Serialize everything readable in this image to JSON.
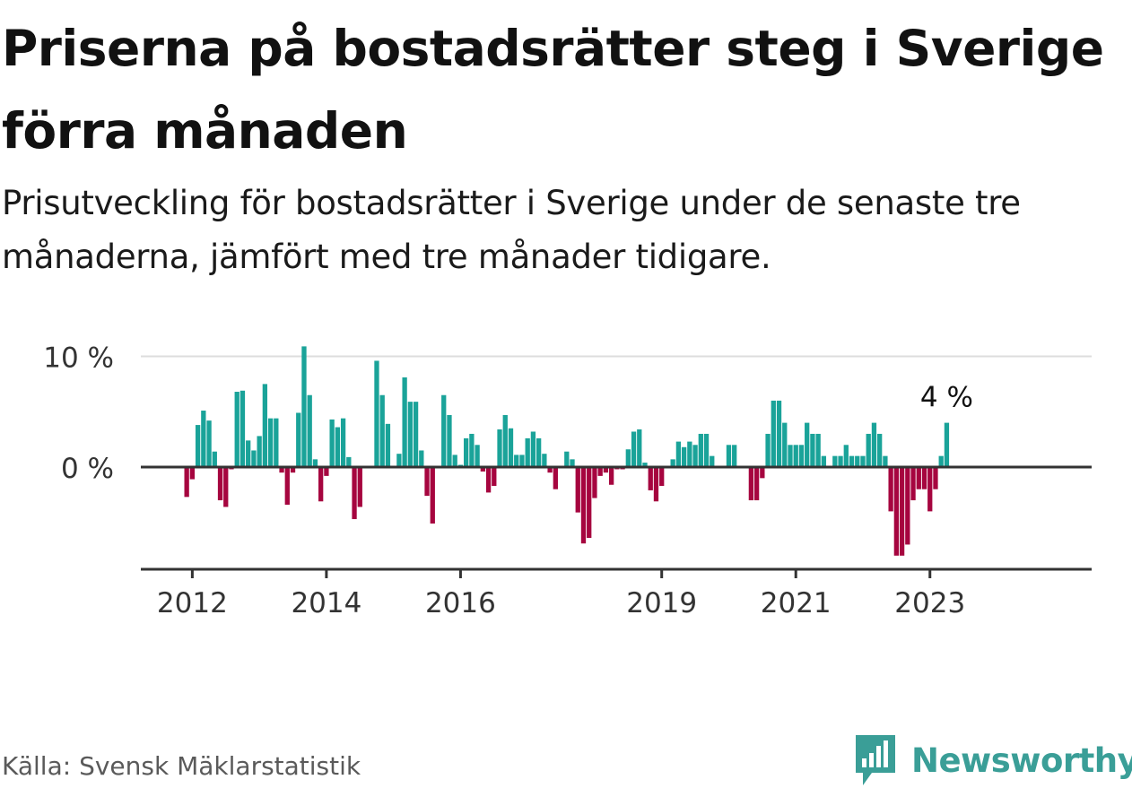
{
  "title": "Priserna på bostadsrätter steg i Sverige förra månaden",
  "subtitle": "Prisutveckling för bostadsrätter i Sverige under de senaste tre månaderna, jämfört med tre månader tidigare.",
  "source": "Källa: Svensk Mäklarstatistik",
  "brand": {
    "name": "Newsworthy",
    "icon": "bar-chart-logo-icon"
  },
  "colors": {
    "positive": "#1aa399",
    "negative": "#a6053f",
    "brand": "#3a9e97",
    "axis": "#333333",
    "grid": "#dddddd"
  },
  "chart_data": {
    "type": "bar",
    "ylabel": "",
    "xlabel": "",
    "ylim": [
      -9,
      10.5
    ],
    "y_ticks": [
      0,
      10
    ],
    "y_tick_labels": [
      "0 %",
      "10 %"
    ],
    "x_ticks": [
      "2012",
      "2014",
      "2016",
      "2019",
      "2021",
      "2023"
    ],
    "x_tick_values": [
      "2012-01",
      "2014-01",
      "2016-01",
      "2019-01",
      "2021-01",
      "2023-01"
    ],
    "grid": true,
    "last_value_label": "4 %",
    "x": [
      "2011-12",
      "2012-01",
      "2012-02",
      "2012-03",
      "2012-04",
      "2012-05",
      "2012-06",
      "2012-07",
      "2012-08",
      "2012-09",
      "2012-10",
      "2012-11",
      "2012-12",
      "2013-01",
      "2013-02",
      "2013-03",
      "2013-04",
      "2013-05",
      "2013-06",
      "2013-07",
      "2013-08",
      "2013-09",
      "2013-10",
      "2013-11",
      "2013-12",
      "2014-01",
      "2014-02",
      "2014-03",
      "2014-04",
      "2014-05",
      "2014-06",
      "2014-07",
      "2014-08",
      "2014-09",
      "2014-10",
      "2014-11",
      "2014-12",
      "2015-01",
      "2015-02",
      "2015-03",
      "2015-04",
      "2015-05",
      "2015-06",
      "2015-07",
      "2015-08",
      "2015-09",
      "2015-10",
      "2015-11",
      "2015-12",
      "2016-01",
      "2016-02",
      "2016-03",
      "2016-04",
      "2016-05",
      "2016-06",
      "2016-07",
      "2016-08",
      "2016-09",
      "2016-10",
      "2016-11",
      "2016-12",
      "2017-01",
      "2017-02",
      "2017-03",
      "2017-04",
      "2017-05",
      "2017-06",
      "2017-07",
      "2017-08",
      "2017-09",
      "2017-10",
      "2017-11",
      "2017-12",
      "2018-01",
      "2018-02",
      "2018-03",
      "2018-04",
      "2018-05",
      "2018-06",
      "2018-07",
      "2018-08",
      "2018-09",
      "2018-10",
      "2018-11",
      "2018-12",
      "2019-01",
      "2019-02",
      "2019-03",
      "2019-04",
      "2019-05",
      "2019-06",
      "2019-07",
      "2019-08",
      "2019-09",
      "2019-10",
      "2019-11",
      "2019-12",
      "2020-01",
      "2020-02",
      "2020-03",
      "2020-04",
      "2020-05",
      "2020-06",
      "2020-07",
      "2020-08",
      "2020-09",
      "2020-10",
      "2020-11",
      "2020-12",
      "2021-01",
      "2021-02",
      "2021-03",
      "2021-04",
      "2021-05",
      "2021-06",
      "2021-07",
      "2021-08",
      "2021-09",
      "2021-10",
      "2021-11",
      "2021-12",
      "2022-01",
      "2022-02",
      "2022-03",
      "2022-04",
      "2022-05",
      "2022-06",
      "2022-07",
      "2022-08",
      "2022-09",
      "2022-10",
      "2022-11",
      "2022-12",
      "2023-01",
      "2023-02",
      "2023-03",
      "2023-04"
    ],
    "values": [
      -2.7,
      -1.1,
      3.8,
      5.1,
      4.2,
      1.4,
      -3.0,
      -3.6,
      -0.2,
      6.8,
      6.9,
      2.4,
      1.5,
      2.8,
      7.5,
      4.4,
      4.4,
      -0.5,
      -3.4,
      -0.5,
      4.9,
      10.9,
      6.5,
      0.7,
      -3.1,
      -0.8,
      4.3,
      3.6,
      4.4,
      0.9,
      -4.7,
      -3.6,
      0,
      0,
      9.6,
      6.5,
      3.9,
      0,
      1.2,
      8.1,
      5.9,
      5.9,
      1.5,
      -2.6,
      -5.1,
      0,
      6.5,
      4.7,
      1.1,
      0.2,
      2.6,
      3.0,
      2.0,
      -0.4,
      -2.3,
      -1.7,
      3.4,
      4.7,
      3.5,
      1.1,
      1.1,
      2.6,
      3.2,
      2.6,
      1.2,
      -0.5,
      -2.0,
      0,
      1.4,
      0.7,
      -4.1,
      -6.9,
      -6.4,
      -2.8,
      -0.8,
      -0.5,
      -1.6,
      -0.2,
      -0.2,
      1.6,
      3.2,
      3.4,
      0.4,
      -2.1,
      -3.1,
      -1.7,
      0,
      0.7,
      2.3,
      1.8,
      2.3,
      2.0,
      3.0,
      3.0,
      1.0,
      0,
      0,
      2.0,
      2.0,
      0,
      0,
      -3.0,
      -3.0,
      -1.0,
      3.0,
      6.0,
      6.0,
      4.0,
      2.0,
      2.0,
      2.0,
      4.0,
      3.0,
      3.0,
      1.0,
      0,
      1.0,
      1.0,
      2.0,
      1.0,
      1.0,
      1.0,
      3.0,
      4.0,
      3.0,
      1.0,
      -4.0,
      -8.0,
      -8.0,
      -7.0,
      -3.0,
      -2.0,
      -2.0,
      -4.0,
      -2.0,
      1.0,
      4.0
    ]
  }
}
